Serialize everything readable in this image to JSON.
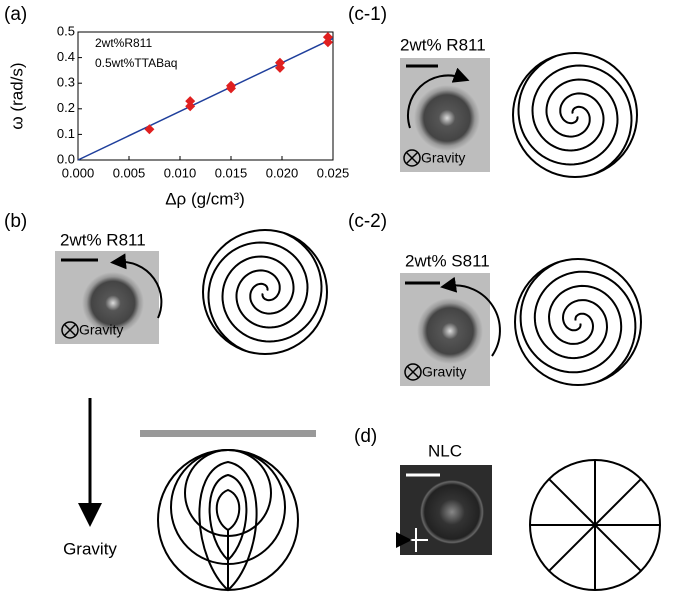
{
  "chart_data": {
    "type": "scatter",
    "xlabel": "Δρ (g/cm³)",
    "ylabel": "ω (rad/s)",
    "annotations": [
      "2wt%R811",
      "0.5wt%TTABaq"
    ],
    "x": [
      0.007,
      0.011,
      0.011,
      0.015,
      0.015,
      0.0198,
      0.0198,
      0.0245,
      0.0245
    ],
    "values": [
      0.12,
      0.21,
      0.23,
      0.28,
      0.29,
      0.36,
      0.38,
      0.46,
      0.48
    ],
    "color": "#e02020",
    "fit": {
      "x": [
        0,
        0.025
      ],
      "values": [
        0,
        0.475
      ],
      "color": "#1f3f9c"
    },
    "xlim": [
      0,
      0.025
    ],
    "ylim": [
      0,
      0.5
    ],
    "xticks": [
      {
        "value": 0,
        "label": "0.000"
      },
      0.005,
      {
        "value": 0.01,
        "label": "0.010"
      },
      0.015,
      {
        "value": 0.02,
        "label": "0.020"
      },
      0.025
    ],
    "yticks": [
      {
        "value": 0,
        "label": "0.0"
      },
      0.1,
      0.2,
      0.3,
      0.4,
      0.5
    ]
  },
  "panels": {
    "a": {
      "label": "(a)"
    },
    "c1": {
      "label": "(c-1)",
      "caption": "2wt% R811",
      "photo_text": "Gravity"
    },
    "b": {
      "label": "(b)",
      "caption": "2wt% R811",
      "photo_text": "Gravity"
    },
    "c2": {
      "label": "(c-2)",
      "caption": "2wt% S811",
      "photo_text": "Gravity"
    },
    "e": {
      "arrow_text": "Gravity"
    },
    "d": {
      "label": "(d)",
      "caption": "NLC"
    }
  }
}
